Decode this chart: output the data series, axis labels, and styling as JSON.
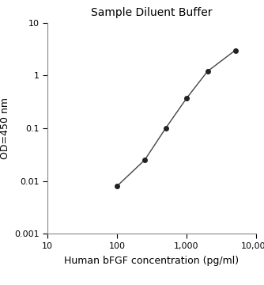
{
  "x": [
    100,
    250,
    500,
    1000,
    2000,
    5000
  ],
  "y": [
    0.008,
    0.025,
    0.1,
    0.37,
    1.2,
    3.0
  ],
  "title": "Sample Diluent Buffer",
  "xlabel": "Human bFGF concentration (pg/ml)",
  "ylabel": "OD=450 nm",
  "xlim": [
    10,
    10000
  ],
  "ylim": [
    0.001,
    10
  ],
  "line_color": "#444444",
  "marker_color": "#222222",
  "marker_size": 4,
  "line_width": 1.0,
  "background_color": "#ffffff",
  "title_fontsize": 10,
  "label_fontsize": 9,
  "tick_fontsize": 8
}
